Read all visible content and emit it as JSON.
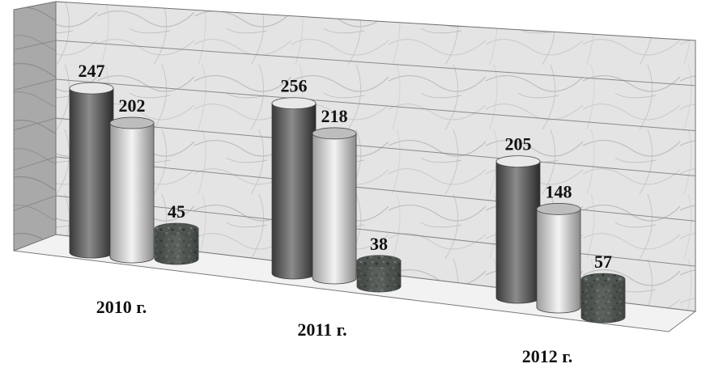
{
  "chart_data": {
    "type": "bar",
    "style": "3d-cylinder",
    "title": "",
    "xlabel": "",
    "ylabel": "",
    "categories": [
      "2010 г.",
      "2011 г.",
      "2012 г."
    ],
    "series": [
      {
        "values": [
          247,
          256,
          205
        ],
        "color": "#9a9a9a"
      },
      {
        "values": [
          202,
          218,
          148
        ],
        "color": "#d4d4d4"
      },
      {
        "values": [
          45,
          38,
          57
        ],
        "color": "#555b58"
      }
    ],
    "ylim": [
      0,
      280
    ],
    "grid": true,
    "legend": "none",
    "show_data_labels": true,
    "background": "marble-texture"
  }
}
